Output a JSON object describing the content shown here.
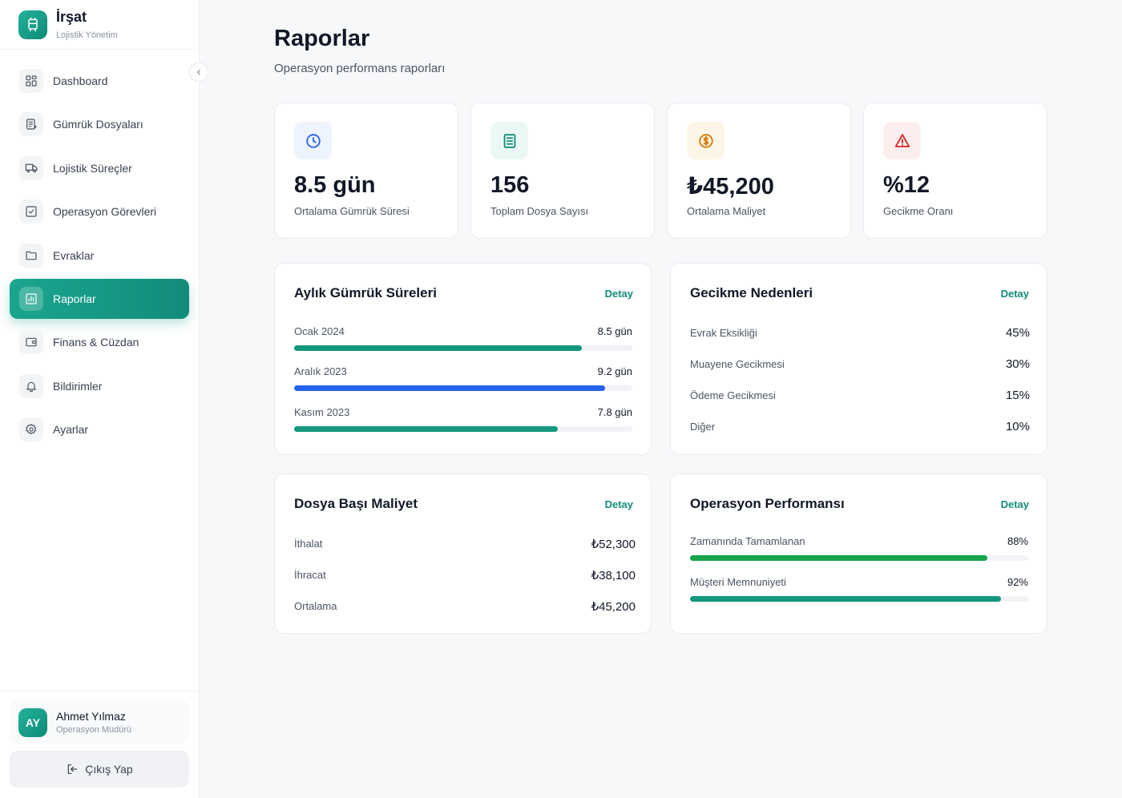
{
  "brand": {
    "name": "İrşat",
    "subtitle": "Lojistik Yönetim"
  },
  "sidebar": {
    "items": [
      {
        "label": "Dashboard",
        "icon": "grid-icon",
        "active": false
      },
      {
        "label": "Gümrük Dosyaları",
        "icon": "document-list-icon",
        "active": false
      },
      {
        "label": "Lojistik Süreçler",
        "icon": "truck-icon",
        "active": false
      },
      {
        "label": "Operasyon Görevleri",
        "icon": "checkbox-icon",
        "active": false
      },
      {
        "label": "Evraklar",
        "icon": "folder-icon",
        "active": false
      },
      {
        "label": "Raporlar",
        "icon": "bar-chart-icon",
        "active": true
      },
      {
        "label": "Finans & Cüzdan",
        "icon": "wallet-icon",
        "active": false
      },
      {
        "label": "Bildirimler",
        "icon": "bell-icon",
        "active": false
      },
      {
        "label": "Ayarlar",
        "icon": "gear-icon",
        "active": false
      }
    ]
  },
  "user": {
    "initials": "AY",
    "name": "Ahmet Yılmaz",
    "role": "Operasyon Müdürü",
    "logout_label": "Çıkış Yap"
  },
  "header": {
    "title": "Raporlar",
    "subtitle": "Operasyon performans raporları"
  },
  "stats": [
    {
      "value": "8.5 gün",
      "label": "Ortalama Gümrük Süresi",
      "icon": "clock-icon",
      "color": "#2563eb"
    },
    {
      "value": "156",
      "label": "Toplam Dosya Sayısı",
      "icon": "document-icon",
      "color": "#128c7a"
    },
    {
      "value": "₺45,200",
      "label": "Ortalama Maliyet",
      "icon": "coin-icon",
      "color": "#d97706"
    },
    {
      "value": "%12",
      "label": "Gecikme Oranı",
      "icon": "warning-icon",
      "color": "#dc2626"
    }
  ],
  "monthly_customs": {
    "title": "Aylık Gümrük Süreleri",
    "link": "Detay",
    "rows": [
      {
        "label": "Ocak 2024",
        "value": "8.5 gün",
        "fraction": 0.85,
        "color": "#14967f"
      },
      {
        "label": "Aralık 2023",
        "value": "9.2 gün",
        "fraction": 0.92,
        "color": "#2563eb"
      },
      {
        "label": "Kasım 2023",
        "value": "7.8 gün",
        "fraction": 0.78,
        "color": "#14967f"
      }
    ]
  },
  "delay_reasons": {
    "title": "Gecikme Nedenleri",
    "link": "Detay",
    "rows": [
      {
        "label": "Evrak Eksikliği",
        "value": "45%"
      },
      {
        "label": "Muayene Gecikmesi",
        "value": "30%"
      },
      {
        "label": "Ödeme Gecikmesi",
        "value": "15%"
      },
      {
        "label": "Diğer",
        "value": "10%"
      }
    ]
  },
  "cost_per_file": {
    "title": "Dosya Başı Maliyet",
    "link": "Detay",
    "rows": [
      {
        "label": "İthalat",
        "value": "₺52,300"
      },
      {
        "label": "İhracat",
        "value": "₺38,100"
      },
      {
        "label": "Ortalama",
        "value": "₺45,200"
      }
    ]
  },
  "operation_performance": {
    "title": "Operasyon Performansı",
    "link": "Detay",
    "rows": [
      {
        "label": "Zamanında Tamamlanan",
        "value": "88%",
        "fraction": 0.88,
        "color": "#16a34a"
      },
      {
        "label": "Müşteri Memnuniyeti",
        "value": "92%",
        "fraction": 0.92,
        "color": "#14967f"
      }
    ]
  }
}
